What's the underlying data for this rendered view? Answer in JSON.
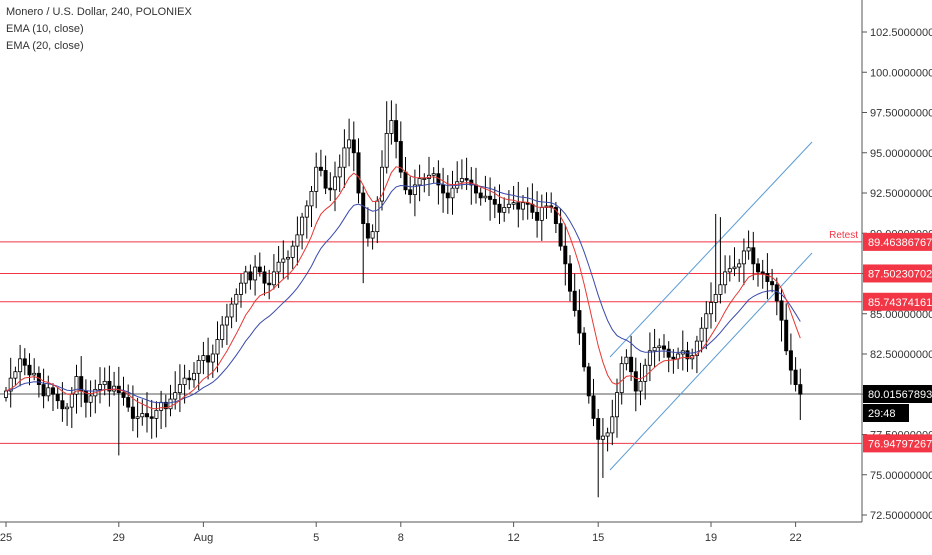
{
  "legend": {
    "symbol": "Monero / U.S. Dollar, 240, POLONIEX",
    "ema10": "EMA (10, close)",
    "ema20": "EMA (20, close)"
  },
  "colors": {
    "background": "#ffffff",
    "candle": "#000000",
    "ema10": "#e53935",
    "ema20": "#3949ab",
    "level_line": "#f23645",
    "channel": "#5b9bd5",
    "price_line": "#555555",
    "axis_text": "#333333"
  },
  "chart_data": {
    "type": "candlestick",
    "title": "Monero / U.S. Dollar, 240, POLONIEX",
    "ylim": [
      72.5,
      103.5
    ],
    "y_ticks": [
      "72.50000000",
      "75.00000000",
      "77.50000000",
      "80.00000000",
      "82.50000000",
      "85.00000000",
      "87.50000000",
      "90.00000000",
      "92.50000000",
      "95.00000000",
      "97.50000000",
      "100.00000000",
      "102.50000000"
    ],
    "y_tick_values": [
      72.5,
      75,
      77.5,
      80,
      82.5,
      85,
      87.5,
      90,
      92.5,
      95,
      97.5,
      100,
      102.5
    ],
    "x_ticks": [
      {
        "label": "25",
        "bar": 0
      },
      {
        "label": "29",
        "bar": 24
      },
      {
        "label": "Aug",
        "bar": 42
      },
      {
        "label": "5",
        "bar": 66
      },
      {
        "label": "8",
        "bar": 84
      },
      {
        "label": "12",
        "bar": 108
      },
      {
        "label": "15",
        "bar": 126
      },
      {
        "label": "19",
        "bar": 150
      },
      {
        "label": "22",
        "bar": 168
      }
    ],
    "bar_count": 170,
    "closes": [
      80.2,
      81.0,
      81.4,
      82.2,
      81.8,
      81.2,
      81.3,
      80.6,
      79.9,
      80.4,
      80.0,
      79.6,
      79.1,
      79.2,
      80.0,
      81.1,
      80.2,
      79.5,
      79.9,
      80.3,
      80.6,
      80.8,
      80.2,
      80.5,
      80.1,
      79.8,
      79.2,
      78.5,
      78.6,
      78.8,
      78.6,
      78.5,
      79.0,
      79.5,
      79.1,
      79.7,
      80.1,
      80.6,
      81.0,
      80.9,
      81.3,
      82.1,
      82.4,
      82.0,
      82.5,
      83.4,
      84.3,
      84.8,
      85.6,
      86.2,
      86.9,
      87.6,
      87.1,
      87.9,
      87.6,
      86.9,
      86.8,
      87.6,
      88.2,
      88.4,
      88.5,
      89.2,
      89.9,
      91.0,
      91.7,
      92.6,
      94.1,
      93.9,
      92.8,
      92.7,
      93.5,
      94.1,
      95.3,
      95.8,
      95.0,
      92.5,
      90.6,
      89.7,
      90.1,
      92.0,
      94.1,
      96.2,
      97.0,
      95.7,
      93.8,
      92.7,
      92.4,
      93.0,
      93.4,
      93.4,
      93.6,
      93.7,
      93.0,
      92.5,
      92.2,
      92.8,
      93.2,
      93.4,
      93.3,
      93.0,
      92.5,
      92.2,
      92.3,
      92.1,
      91.8,
      91.3,
      91.6,
      91.8,
      91.9,
      91.5,
      91.9,
      91.8,
      91.3,
      90.8,
      91.6,
      91.7,
      91.6,
      90.6,
      89.2,
      88.1,
      86.4,
      85.2,
      83.8,
      81.7,
      79.9,
      78.5,
      77.2,
      77.4,
      77.6,
      78.6,
      80.1,
      81.9,
      82.3,
      81.4,
      80.2,
      80.8,
      81.8,
      82.7,
      82.9,
      83.0,
      82.8,
      82.3,
      82.2,
      82.5,
      82.7,
      82.2,
      82.4,
      83.3,
      84.1,
      85.0,
      85.7,
      86.2,
      86.8,
      87.6,
      87.8,
      87.9,
      88.1,
      88.9,
      89.1,
      88.1,
      87.6,
      87.5,
      87.0,
      86.8,
      85.8,
      84.6,
      82.7,
      81.5,
      80.6,
      80.0
    ]
  },
  "levels": [
    {
      "label": "89.46386767",
      "value": 89.46386767
    },
    {
      "label": "87.50230702",
      "value": 87.50230702
    },
    {
      "label": "85.74374161",
      "value": 85.74374161
    },
    {
      "label": "76.94797267",
      "value": 76.94797267
    }
  ],
  "retest_label": "Retest",
  "current_price": {
    "label": "80.01567893",
    "value": 80.01567893
  },
  "countdown": "29:48"
}
